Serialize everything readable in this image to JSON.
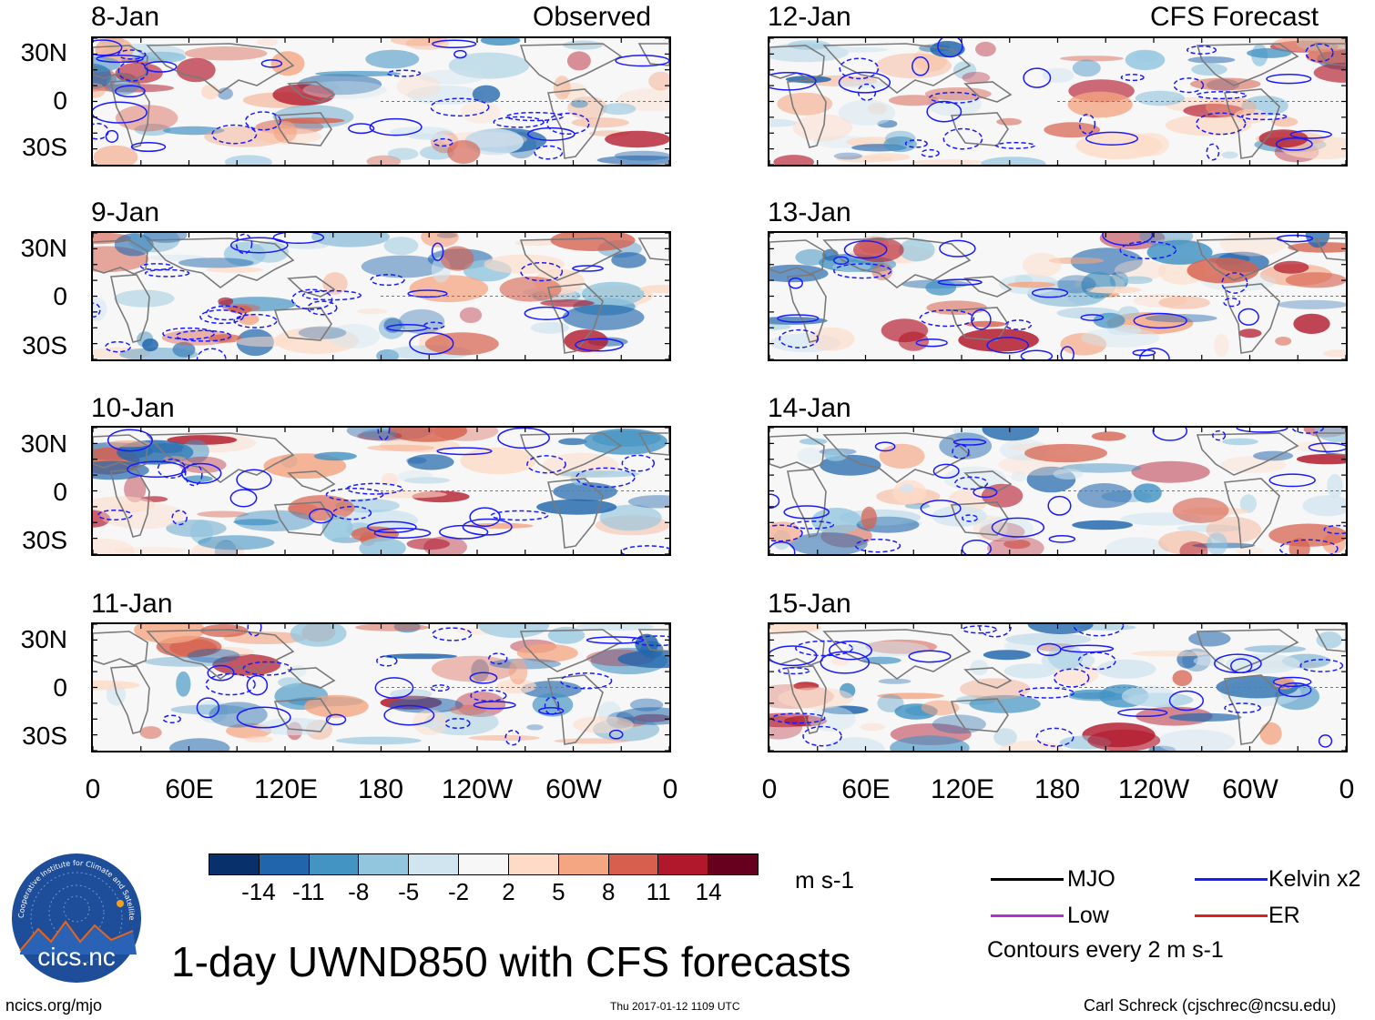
{
  "panels": [
    {
      "date": "8-Jan",
      "tag": "Observed"
    },
    {
      "date": "9-Jan",
      "tag": ""
    },
    {
      "date": "10-Jan",
      "tag": ""
    },
    {
      "date": "11-Jan",
      "tag": ""
    },
    {
      "date": "12-Jan",
      "tag": "CFS Forecast"
    },
    {
      "date": "13-Jan",
      "tag": ""
    },
    {
      "date": "14-Jan",
      "tag": ""
    },
    {
      "date": "15-Jan",
      "tag": ""
    }
  ],
  "lat_labels": [
    "30N",
    "0",
    "30S"
  ],
  "lon_labels": [
    "0",
    "60E",
    "120E",
    "180",
    "120W",
    "60W",
    "0"
  ],
  "colorbar": {
    "labels": [
      "-14",
      "-11",
      "-8",
      "-5",
      "-2",
      "2",
      "5",
      "8",
      "11",
      "14"
    ],
    "colors": [
      "#08306b",
      "#2166ac",
      "#4393c3",
      "#92c5de",
      "#d1e5f0",
      "#f7f7f7",
      "#fddbc7",
      "#f4a582",
      "#d6604d",
      "#b2182b",
      "#67001f"
    ],
    "units": "m s-1"
  },
  "legend": {
    "mjo": {
      "label": "MJO",
      "color": "#000000"
    },
    "kelvin": {
      "label": "Kelvin x2",
      "color": "#1a1aff"
    },
    "low": {
      "label": "Low",
      "color": "#b030d0"
    },
    "er": {
      "label": "ER",
      "color": "#e02020"
    },
    "contours": "Contours every 2 m s-1"
  },
  "title": "1-day UWND850 with CFS forecasts",
  "logo_text": "cics.nc",
  "logo_ring_text": "Cooperative Institute for Climate and Satellites",
  "footer": {
    "left": "ncics.org/mjo",
    "center": "Thu 2017-01-12 1109 UTC",
    "right": "Carl Schreck (cjschrec@ncsu.edu)"
  }
}
